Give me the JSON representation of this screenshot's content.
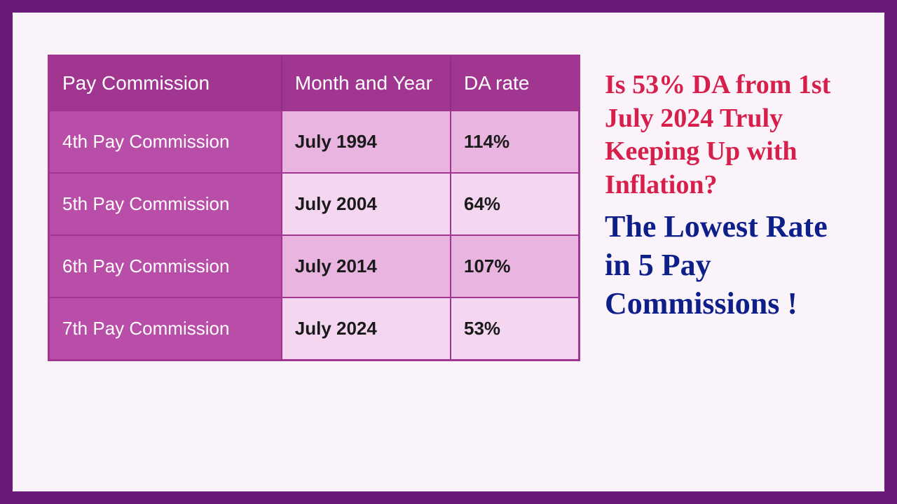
{
  "table": {
    "columns": [
      "Pay Commission",
      "Month and Year",
      "DA rate"
    ],
    "rows": [
      {
        "commission": "4th Pay Commission",
        "month_year": "July 1994",
        "da_rate": "114%",
        "shade": "med"
      },
      {
        "commission": "5th Pay Commission",
        "month_year": "July 2004",
        "da_rate": "64%",
        "shade": "light"
      },
      {
        "commission": "6th Pay Commission",
        "month_year": "July 2014",
        "da_rate": "107%",
        "shade": "med"
      },
      {
        "commission": "7th Pay Commission",
        "month_year": "July 2024",
        "da_rate": "53%",
        "shade": "light"
      }
    ],
    "header_bg": "#a03690",
    "header_text_color": "#ffffff",
    "first_col_bg": "#b84ea8",
    "row_light_bg": "#f4d6f0",
    "row_med_bg": "#e9b4e0",
    "border_color": "#a03690",
    "header_fontsize": 28,
    "cell_fontsize": 26
  },
  "headline": {
    "red_text": "Is 53% DA from 1st July 2024 Truly Keeping Up with Inflation?",
    "blue_text": "The Lowest Rate in 5 Pay Commissions !",
    "red_color": "#d6204b",
    "blue_color": "#0e1f8a",
    "red_fontsize": 38,
    "blue_fontsize": 44
  },
  "canvas": {
    "outer_bg": "#6a1b7a",
    "inner_bg": "#faf4fa",
    "outer_padding": 18
  }
}
